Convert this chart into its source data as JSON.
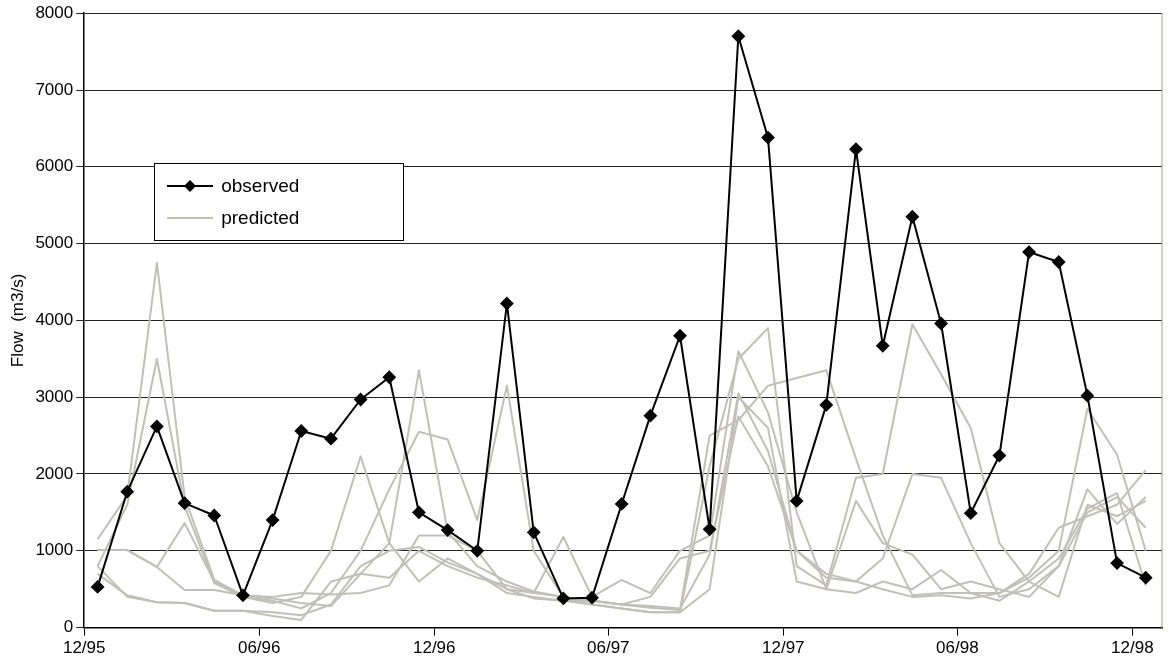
{
  "chart_data": {
    "type": "line",
    "ylabel": "Flow  (m3/s)",
    "x": [
      "1995-12-15",
      "1996-01-15",
      "1996-02-15",
      "1996-03-15",
      "1996-04-15",
      "1996-05-15",
      "1996-06-15",
      "1996-07-15",
      "1996-08-15",
      "1996-09-15",
      "1996-10-15",
      "1996-11-15",
      "1996-12-15",
      "1997-01-15",
      "1997-02-15",
      "1997-03-15",
      "1997-04-15",
      "1997-05-15",
      "1997-06-15",
      "1997-07-15",
      "1997-08-15",
      "1997-09-15",
      "1997-10-15",
      "1997-11-15",
      "1997-12-15",
      "1998-01-15",
      "1998-02-15",
      "1998-03-15",
      "1998-04-15",
      "1998-05-15",
      "1998-06-15",
      "1998-07-15",
      "1998-08-15",
      "1998-09-15",
      "1998-10-15",
      "1998-11-15",
      "1998-12-15"
    ],
    "series": [
      {
        "name": "observed",
        "color": "#000000",
        "marker": "diamond",
        "values": [
          530,
          1770,
          2620,
          1620,
          1460,
          420,
          1400,
          2560,
          2460,
          2970,
          3260,
          1500,
          1270,
          1000,
          4220,
          1240,
          380,
          390,
          1610,
          2760,
          3800,
          1280,
          7700,
          6380,
          1650,
          2900,
          6230,
          3670,
          5350,
          3960,
          1490,
          2240,
          4890,
          4760,
          3020,
          840,
          650
        ]
      },
      {
        "name": "predicted",
        "color": "#c0c0b8",
        "marker": "none",
        "values": [
          1150,
          1720,
          4750,
          1700,
          620,
          420,
          380,
          320,
          280,
          700,
          1100,
          3350,
          1250,
          800,
          600,
          470,
          400,
          350,
          300,
          280,
          250,
          950,
          3050,
          2300,
          1000,
          650,
          600,
          500,
          400,
          420,
          380,
          450,
          650,
          1000,
          2850,
          2250,
          1000
        ]
      },
      {
        "color": "#c0c0b8",
        "marker": "none",
        "values": [
          800,
          1600,
          3500,
          1580,
          580,
          400,
          350,
          250,
          450,
          1000,
          1800,
          2550,
          2450,
          1400,
          3150,
          1000,
          400,
          300,
          250,
          200,
          200,
          2100,
          3500,
          3900,
          800,
          550,
          1950,
          2000,
          3950,
          3300,
          2600,
          1100,
          600,
          400,
          1600,
          1450,
          1650
        ]
      },
      {
        "color": "#c0c0b8",
        "marker": "none",
        "values": [
          1010,
          1010,
          790,
          1360,
          600,
          400,
          320,
          400,
          1000,
          2230,
          1100,
          600,
          900,
          700,
          500,
          450,
          1180,
          400,
          620,
          450,
          1000,
          1200,
          3600,
          2800,
          1500,
          500,
          1650,
          1100,
          950,
          500,
          600,
          500,
          400,
          800,
          1800,
          1350,
          1700
        ]
      },
      {
        "color": "#c0c0b8",
        "marker": "none",
        "values": [
          800,
          400,
          330,
          320,
          220,
          220,
          150,
          100,
          600,
          700,
          650,
          1000,
          800,
          650,
          550,
          450,
          400,
          350,
          300,
          260,
          230,
          2500,
          2700,
          3150,
          3250,
          3350,
          2200,
          1200,
          420,
          450,
          450,
          350,
          600,
          900,
          1550,
          1750,
          550
        ]
      },
      {
        "color": "#c0c0b8",
        "marker": "none",
        "values": [
          1010,
          1010,
          790,
          490,
          490,
          420,
          400,
          450,
          430,
          450,
          550,
          1200,
          1200,
          1000,
          500,
          380,
          350,
          350,
          300,
          400,
          900,
          1000,
          2750,
          2100,
          1000,
          700,
          600,
          900,
          2000,
          1950,
          1100,
          400,
          500,
          800,
          1500,
          1700,
          1300
        ]
      },
      {
        "color": "#c0c0b8",
        "marker": "none",
        "values": [
          700,
          420,
          330,
          320,
          220,
          220,
          200,
          160,
          300,
          800,
          1000,
          1050,
          850,
          700,
          450,
          400,
          350,
          300,
          250,
          200,
          200,
          500,
          3000,
          2600,
          600,
          500,
          450,
          600,
          500,
          750,
          450,
          450,
          700,
          1300,
          1450,
          1600,
          2050
        ]
      }
    ],
    "xlim": [
      "1995-12-01",
      "1999-01-01"
    ],
    "xticks": [
      {
        "value": "1995-12-01",
        "label": "12/95"
      },
      {
        "value": "1996-06-01",
        "label": "06/96"
      },
      {
        "value": "1996-12-01",
        "label": "12/96"
      },
      {
        "value": "1997-06-01",
        "label": "06/97"
      },
      {
        "value": "1997-12-01",
        "label": "12/97"
      },
      {
        "value": "1998-06-01",
        "label": "06/98"
      },
      {
        "value": "1998-12-01",
        "label": "12/98"
      }
    ],
    "ylim": [
      0,
      8000
    ],
    "yticks": [
      0,
      1000,
      2000,
      3000,
      4000,
      5000,
      6000,
      7000,
      8000
    ],
    "grid": "y",
    "legend": "top left",
    "line_style": "solid"
  }
}
